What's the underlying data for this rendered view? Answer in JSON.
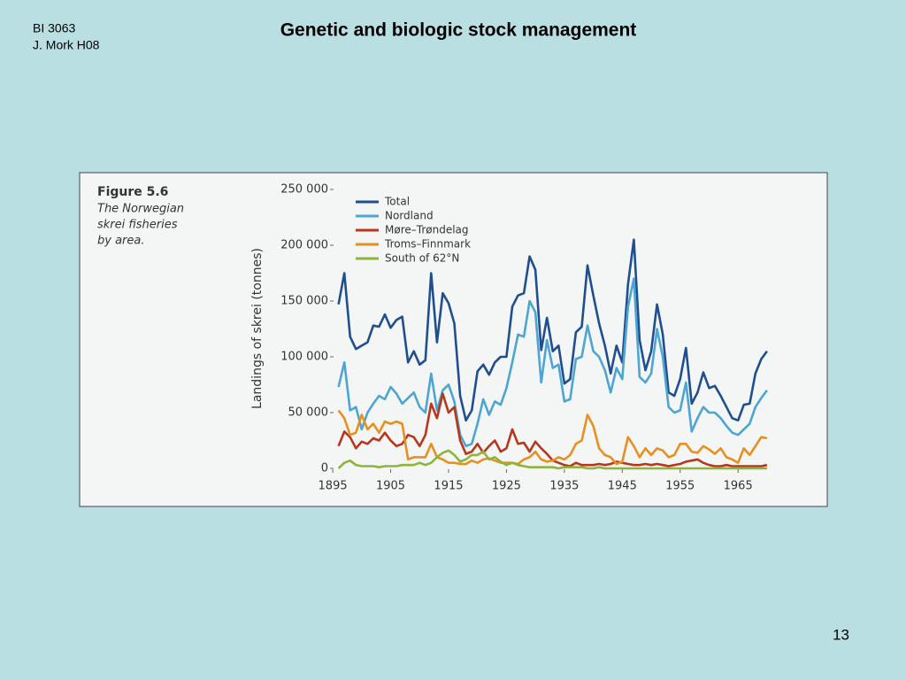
{
  "slide": {
    "course": "BI 3063",
    "author": "J. Mork H08",
    "title": "Genetic and biologic stock management",
    "page": "13"
  },
  "chart_data": {
    "type": "line",
    "figure_label": "Figure 5.6",
    "caption": [
      "The Norwegian",
      "skrei fisheries",
      "by area."
    ],
    "y_label": "Landings of skrei (tonnes)",
    "x": [
      1896,
      1897,
      1898,
      1899,
      1900,
      1901,
      1902,
      1903,
      1904,
      1905,
      1906,
      1907,
      1908,
      1909,
      1910,
      1911,
      1912,
      1913,
      1914,
      1915,
      1916,
      1917,
      1918,
      1919,
      1920,
      1921,
      1922,
      1923,
      1924,
      1925,
      1926,
      1927,
      1928,
      1929,
      1930,
      1931,
      1932,
      1933,
      1934,
      1935,
      1936,
      1937,
      1938,
      1939,
      1940,
      1941,
      1942,
      1943,
      1944,
      1945,
      1946,
      1947,
      1948,
      1949,
      1950,
      1951,
      1952,
      1953,
      1954,
      1955,
      1956,
      1957,
      1958,
      1959,
      1960,
      1961,
      1962,
      1963,
      1964,
      1965,
      1966,
      1967,
      1968,
      1969,
      1970
    ],
    "series": [
      {
        "name": "Total",
        "color": "#1f4f8e",
        "values": [
          147000,
          175000,
          118000,
          107000,
          110000,
          113000,
          128000,
          127000,
          138000,
          126000,
          133000,
          136000,
          95000,
          105000,
          93000,
          97000,
          175000,
          113000,
          157000,
          148000,
          130000,
          65000,
          43000,
          52000,
          87000,
          93000,
          84000,
          95000,
          100000,
          100000,
          145000,
          155000,
          157000,
          190000,
          178000,
          106000,
          135000,
          105000,
          110000,
          76000,
          80000,
          122000,
          127000,
          182000,
          155000,
          130000,
          110000,
          85000,
          110000,
          95000,
          165000,
          205000,
          115000,
          88000,
          105000,
          147000,
          120000,
          68000,
          65000,
          80000,
          108000,
          58000,
          68000,
          86000,
          72000,
          74000,
          65000,
          55000,
          45000,
          43000,
          57000,
          58000,
          85000,
          98000,
          105000
        ]
      },
      {
        "name": "Nordland",
        "color": "#4da5d2",
        "values": [
          73000,
          95000,
          52000,
          55000,
          35000,
          50000,
          58000,
          65000,
          62000,
          73000,
          67000,
          58000,
          63000,
          68000,
          55000,
          50000,
          85000,
          52000,
          70000,
          75000,
          60000,
          30000,
          20000,
          22000,
          40000,
          62000,
          48000,
          60000,
          57000,
          72000,
          95000,
          120000,
          118000,
          150000,
          140000,
          77000,
          115000,
          90000,
          93000,
          60000,
          62000,
          98000,
          100000,
          128000,
          105000,
          100000,
          88000,
          68000,
          90000,
          80000,
          145000,
          170000,
          82000,
          77000,
          85000,
          125000,
          100000,
          55000,
          50000,
          52000,
          77000,
          33000,
          45000,
          55000,
          50000,
          50000,
          45000,
          38000,
          32000,
          30000,
          35000,
          40000,
          55000,
          63000,
          70000
        ]
      },
      {
        "name": "Møre–Trøndelag",
        "color": "#b8361c",
        "values": [
          20000,
          33000,
          28000,
          18000,
          24000,
          22000,
          27000,
          25000,
          32000,
          25000,
          20000,
          22000,
          30000,
          28000,
          20000,
          30000,
          58000,
          45000,
          67000,
          50000,
          55000,
          25000,
          13000,
          15000,
          22000,
          14000,
          20000,
          25000,
          15000,
          18000,
          35000,
          22000,
          23000,
          15000,
          24000,
          18000,
          13000,
          7000,
          5000,
          3000,
          2000,
          5000,
          3000,
          3000,
          3000,
          4000,
          3000,
          4000,
          6000,
          5000,
          4000,
          3000,
          3000,
          4000,
          3000,
          4000,
          3000,
          2000,
          3000,
          4000,
          6000,
          7000,
          8000,
          5000,
          3000,
          2000,
          2000,
          3000,
          2000,
          2000,
          2000,
          2000,
          2000,
          2000,
          3000
        ]
      },
      {
        "name": "Troms–Finnmark",
        "color": "#e8901f",
        "values": [
          52000,
          45000,
          30000,
          32000,
          48000,
          35000,
          40000,
          32000,
          42000,
          40000,
          42000,
          40000,
          8000,
          10000,
          10000,
          10000,
          22000,
          10000,
          8000,
          5000,
          5000,
          4000,
          4000,
          7000,
          5000,
          8000,
          9000,
          7000,
          5000,
          5000,
          5000,
          4000,
          8000,
          10000,
          15000,
          8000,
          6000,
          7000,
          10000,
          8000,
          12000,
          22000,
          25000,
          48000,
          38000,
          18000,
          12000,
          10000,
          4000,
          6000,
          28000,
          20000,
          10000,
          18000,
          12000,
          18000,
          16000,
          10000,
          12000,
          22000,
          22000,
          15000,
          14000,
          20000,
          17000,
          13000,
          18000,
          10000,
          8000,
          5000,
          18000,
          12000,
          20000,
          28000,
          27000
        ]
      },
      {
        "name": "South of 62°N",
        "color": "#8db43b",
        "values": [
          0,
          5000,
          7000,
          3000,
          2000,
          2000,
          2000,
          1000,
          2000,
          2000,
          2000,
          3000,
          3000,
          3000,
          5000,
          3000,
          5000,
          10000,
          14000,
          16000,
          12000,
          6000,
          8000,
          12000,
          12000,
          15000,
          8000,
          10000,
          6000,
          3000,
          5000,
          3000,
          2000,
          1000,
          1000,
          1000,
          1000,
          1000,
          0,
          1000,
          1000,
          1000,
          1000,
          0,
          0,
          1000,
          0,
          0,
          0,
          0,
          0,
          0,
          0,
          0,
          0,
          0,
          0,
          0,
          0,
          0,
          0,
          0,
          0,
          0,
          0,
          0,
          0,
          0,
          0,
          0,
          0,
          0,
          0,
          0,
          0
        ]
      }
    ],
    "xlim": [
      1893,
      1972
    ],
    "xticks": [
      1895,
      1905,
      1915,
      1925,
      1935,
      1945,
      1955,
      1965
    ],
    "ylim": [
      0,
      250000
    ],
    "yticks": [
      0,
      {
        "value": 50000,
        "label": "50 000"
      },
      {
        "value": 100000,
        "label": "100 000"
      },
      {
        "value": 150000,
        "label": "150 000"
      },
      {
        "value": 200000,
        "label": "200 000"
      },
      {
        "value": 250000,
        "label": "250 000"
      }
    ],
    "grid": false,
    "legend": "upper-left"
  }
}
